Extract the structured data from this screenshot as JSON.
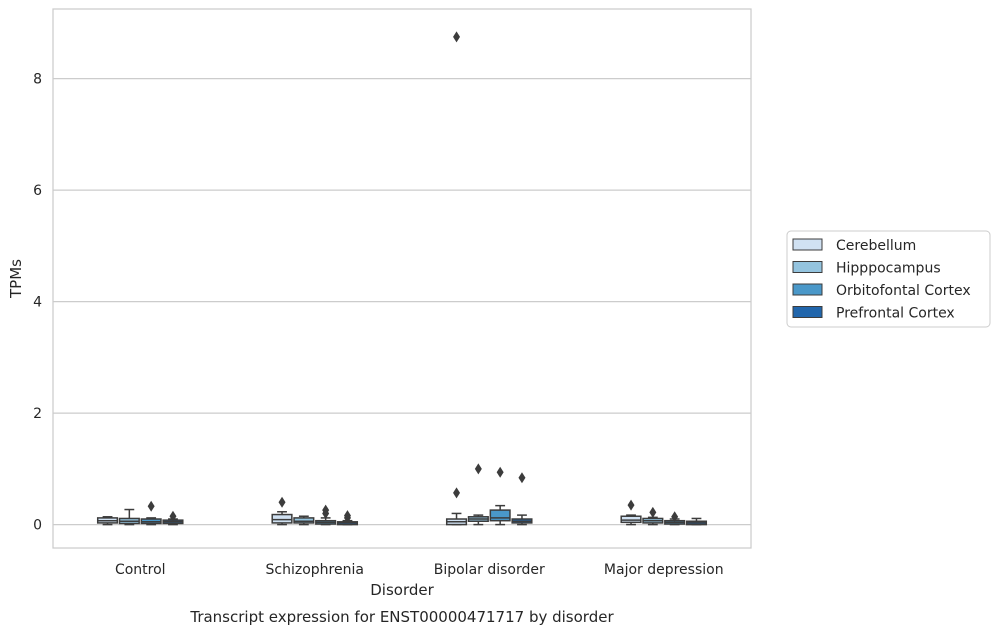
{
  "chart_data": {
    "type": "box",
    "title": "Transcript expression for ENST00000471717 by disorder",
    "xlabel": "Disorder",
    "ylabel": "TPMs",
    "ylim": [
      -0.42,
      9.25
    ],
    "yticks": [
      0,
      2,
      4,
      6,
      8
    ],
    "grid": true,
    "legend_position": "right",
    "categories": [
      "Control",
      "Schizophrenia",
      "Bipolar disorder",
      "Major depression"
    ],
    "series": [
      {
        "name": "Cerebellum",
        "color": "#d0e1f2",
        "boxes": [
          {
            "min": 0.0,
            "q1": 0.03,
            "median": 0.07,
            "q3": 0.12,
            "max": 0.14,
            "outliers": []
          },
          {
            "min": 0.0,
            "q1": 0.03,
            "median": 0.09,
            "q3": 0.18,
            "max": 0.23,
            "outliers": [
              0.4
            ]
          },
          {
            "min": 0.0,
            "q1": 0.0,
            "median": 0.05,
            "q3": 0.1,
            "max": 0.2,
            "outliers": [
              0.57,
              8.75
            ]
          },
          {
            "min": 0.0,
            "q1": 0.04,
            "median": 0.08,
            "q3": 0.15,
            "max": 0.17,
            "outliers": [
              0.35
            ]
          }
        ]
      },
      {
        "name": "Hipppocampus",
        "color": "#94c4df",
        "boxes": [
          {
            "min": 0.0,
            "q1": 0.02,
            "median": 0.06,
            "q3": 0.11,
            "max": 0.27,
            "outliers": []
          },
          {
            "min": 0.0,
            "q1": 0.03,
            "median": 0.06,
            "q3": 0.12,
            "max": 0.15,
            "outliers": []
          },
          {
            "min": 0.0,
            "q1": 0.06,
            "median": 0.1,
            "q3": 0.14,
            "max": 0.17,
            "outliers": [
              1.0
            ]
          },
          {
            "min": 0.0,
            "q1": 0.03,
            "median": 0.07,
            "q3": 0.11,
            "max": 0.13,
            "outliers": [
              0.22
            ]
          }
        ]
      },
      {
        "name": "Orbitofontal Cortex",
        "color": "#4a98c9",
        "boxes": [
          {
            "min": 0.0,
            "q1": 0.02,
            "median": 0.05,
            "q3": 0.1,
            "max": 0.12,
            "outliers": [
              0.33
            ]
          },
          {
            "min": 0.0,
            "q1": 0.01,
            "median": 0.04,
            "q3": 0.07,
            "max": 0.12,
            "outliers": [
              0.2,
              0.26
            ]
          },
          {
            "min": 0.0,
            "q1": 0.07,
            "median": 0.12,
            "q3": 0.26,
            "max": 0.34,
            "outliers": [
              0.94
            ]
          },
          {
            "min": 0.0,
            "q1": 0.01,
            "median": 0.04,
            "q3": 0.07,
            "max": 0.1,
            "outliers": [
              0.14
            ]
          }
        ]
      },
      {
        "name": "Prefrontal Cortex",
        "color": "#2166ac",
        "boxes": [
          {
            "min": 0.0,
            "q1": 0.02,
            "median": 0.05,
            "q3": 0.08,
            "max": 0.1,
            "outliers": [
              0.15
            ]
          },
          {
            "min": 0.0,
            "q1": 0.0,
            "median": 0.03,
            "q3": 0.05,
            "max": 0.07,
            "outliers": [
              0.12,
              0.16
            ]
          },
          {
            "min": 0.0,
            "q1": 0.03,
            "median": 0.06,
            "q3": 0.1,
            "max": 0.17,
            "outliers": [
              0.84
            ]
          },
          {
            "min": 0.0,
            "q1": 0.0,
            "median": 0.03,
            "q3": 0.06,
            "max": 0.11,
            "outliers": []
          }
        ]
      }
    ]
  }
}
